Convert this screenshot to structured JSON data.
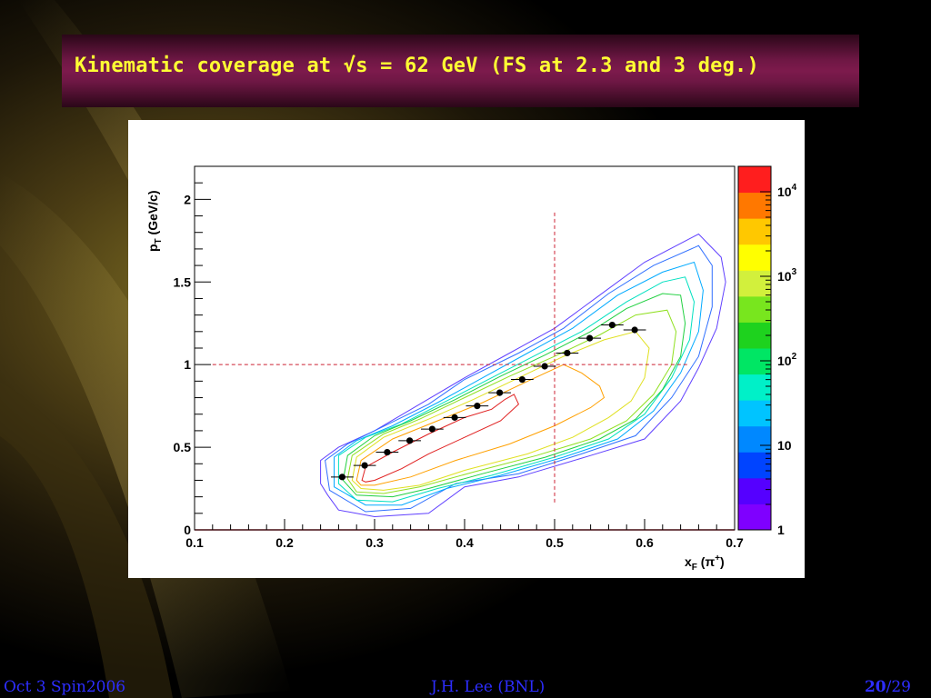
{
  "slide": {
    "title": "Kinematic coverage at √s = 62 GeV (FS at 2.3 and 3 deg.)",
    "footer_left": "Oct 3 Spin2006",
    "footer_center": "J.H. Lee (BNL)",
    "footer_page": "20",
    "footer_total": "/29",
    "title_color": "#ffff33",
    "footer_color": "#2d2dff"
  },
  "chart_data": {
    "type": "scatter",
    "xlabel": "x",
    "xlabel_sub": "F",
    "xlabel_paren": " (π",
    "xlabel_sup": "+",
    "xlabel_close": ")",
    "ylabel": "p",
    "ylabel_sub": "T",
    "ylabel_rest": " (GeV/c)",
    "xlim": [
      0.1,
      0.7
    ],
    "ylim": [
      0,
      2.2
    ],
    "x_ticks": [
      "0.1",
      "0.2",
      "0.3",
      "0.4",
      "0.5",
      "0.6",
      "0.7"
    ],
    "y_ticks": [
      "0",
      "0.5",
      "1",
      "1.5",
      "2"
    ],
    "x_tick_values": [
      0.1,
      0.2,
      0.3,
      0.4,
      0.5,
      0.6,
      0.7
    ],
    "y_tick_values": [
      0,
      0.5,
      1,
      1.5,
      2
    ],
    "colorbar": {
      "scale": "log",
      "range": [
        1,
        20000
      ],
      "labels": [
        "1",
        "10",
        "10",
        "10",
        "10"
      ],
      "label_sups": [
        "",
        "",
        "2",
        "3",
        "4"
      ],
      "label_values": [
        1,
        10,
        100,
        1000,
        10000
      ],
      "colors": [
        "#7f00ff",
        "#5500ff",
        "#0044ff",
        "#0088ff",
        "#00c4ff",
        "#00f0c8",
        "#00e664",
        "#1ed21e",
        "#78e61e",
        "#d2f03c",
        "#ffff00",
        "#ffc800",
        "#ff7800",
        "#ff1e1e"
      ]
    },
    "dashed_lines": {
      "x": 0.5,
      "y": 1.0,
      "color": "#cc2233"
    },
    "series": [
      {
        "x": [
          0.264,
          0.289,
          0.314,
          0.339,
          0.364,
          0.389,
          0.414,
          0.439,
          0.464,
          0.489,
          0.514,
          0.539,
          0.564,
          0.589
        ],
        "y": [
          0.32,
          0.39,
          0.47,
          0.54,
          0.61,
          0.68,
          0.75,
          0.83,
          0.91,
          0.99,
          1.07,
          1.16,
          1.24,
          1.21
        ],
        "xerr": 0.0125
      }
    ],
    "contours": [
      {
        "color": "#6040ff",
        "points": [
          [
            0.248,
            0.21
          ],
          [
            0.24,
            0.28
          ],
          [
            0.24,
            0.42
          ],
          [
            0.26,
            0.5
          ],
          [
            0.3,
            0.6
          ],
          [
            0.35,
            0.76
          ],
          [
            0.4,
            0.92
          ],
          [
            0.45,
            1.07
          ],
          [
            0.5,
            1.22
          ],
          [
            0.55,
            1.42
          ],
          [
            0.6,
            1.62
          ],
          [
            0.66,
            1.79
          ],
          [
            0.685,
            1.65
          ],
          [
            0.69,
            1.5
          ],
          [
            0.68,
            1.22
          ],
          [
            0.66,
            0.98
          ],
          [
            0.64,
            0.78
          ],
          [
            0.6,
            0.55
          ],
          [
            0.54,
            0.45
          ],
          [
            0.46,
            0.32
          ],
          [
            0.4,
            0.26
          ],
          [
            0.36,
            0.1
          ],
          [
            0.3,
            0.08
          ],
          [
            0.26,
            0.12
          ]
        ]
      },
      {
        "color": "#3070ff",
        "points": [
          [
            0.25,
            0.24
          ],
          [
            0.245,
            0.42
          ],
          [
            0.27,
            0.52
          ],
          [
            0.3,
            0.6
          ],
          [
            0.36,
            0.76
          ],
          [
            0.4,
            0.91
          ],
          [
            0.46,
            1.07
          ],
          [
            0.51,
            1.22
          ],
          [
            0.56,
            1.43
          ],
          [
            0.61,
            1.6
          ],
          [
            0.66,
            1.72
          ],
          [
            0.675,
            1.6
          ],
          [
            0.675,
            1.35
          ],
          [
            0.66,
            1.05
          ],
          [
            0.63,
            0.8
          ],
          [
            0.59,
            0.57
          ],
          [
            0.53,
            0.46
          ],
          [
            0.46,
            0.34
          ],
          [
            0.39,
            0.28
          ],
          [
            0.34,
            0.13
          ],
          [
            0.29,
            0.11
          ]
        ]
      },
      {
        "color": "#00aaff",
        "points": [
          [
            0.255,
            0.26
          ],
          [
            0.255,
            0.44
          ],
          [
            0.28,
            0.54
          ],
          [
            0.32,
            0.63
          ],
          [
            0.37,
            0.77
          ],
          [
            0.42,
            0.92
          ],
          [
            0.47,
            1.07
          ],
          [
            0.52,
            1.22
          ],
          [
            0.57,
            1.42
          ],
          [
            0.62,
            1.56
          ],
          [
            0.655,
            1.62
          ],
          [
            0.665,
            1.45
          ],
          [
            0.66,
            1.2
          ],
          [
            0.64,
            0.95
          ],
          [
            0.61,
            0.72
          ],
          [
            0.57,
            0.55
          ],
          [
            0.51,
            0.44
          ],
          [
            0.44,
            0.33
          ],
          [
            0.38,
            0.25
          ],
          [
            0.33,
            0.15
          ],
          [
            0.29,
            0.15
          ]
        ]
      },
      {
        "color": "#00e0c0",
        "points": [
          [
            0.26,
            0.28
          ],
          [
            0.26,
            0.45
          ],
          [
            0.29,
            0.56
          ],
          [
            0.33,
            0.64
          ],
          [
            0.38,
            0.78
          ],
          [
            0.43,
            0.92
          ],
          [
            0.48,
            1.06
          ],
          [
            0.53,
            1.2
          ],
          [
            0.58,
            1.38
          ],
          [
            0.62,
            1.5
          ],
          [
            0.645,
            1.53
          ],
          [
            0.655,
            1.38
          ],
          [
            0.65,
            1.15
          ],
          [
            0.63,
            0.92
          ],
          [
            0.6,
            0.7
          ],
          [
            0.56,
            0.55
          ],
          [
            0.5,
            0.44
          ],
          [
            0.43,
            0.33
          ],
          [
            0.37,
            0.25
          ],
          [
            0.32,
            0.17
          ],
          [
            0.28,
            0.18
          ]
        ]
      },
      {
        "color": "#20d040",
        "points": [
          [
            0.265,
            0.3
          ],
          [
            0.27,
            0.45
          ],
          [
            0.3,
            0.57
          ],
          [
            0.34,
            0.66
          ],
          [
            0.39,
            0.79
          ],
          [
            0.44,
            0.93
          ],
          [
            0.49,
            1.06
          ],
          [
            0.54,
            1.2
          ],
          [
            0.58,
            1.34
          ],
          [
            0.62,
            1.43
          ],
          [
            0.64,
            1.42
          ],
          [
            0.645,
            1.25
          ],
          [
            0.64,
            1.05
          ],
          [
            0.62,
            0.85
          ],
          [
            0.59,
            0.67
          ],
          [
            0.55,
            0.55
          ],
          [
            0.49,
            0.44
          ],
          [
            0.42,
            0.34
          ],
          [
            0.36,
            0.25
          ],
          [
            0.32,
            0.2
          ],
          [
            0.28,
            0.21
          ]
        ]
      },
      {
        "color": "#90e020",
        "points": [
          [
            0.27,
            0.31
          ],
          [
            0.275,
            0.45
          ],
          [
            0.31,
            0.58
          ],
          [
            0.35,
            0.67
          ],
          [
            0.4,
            0.8
          ],
          [
            0.45,
            0.93
          ],
          [
            0.5,
            1.05
          ],
          [
            0.55,
            1.18
          ],
          [
            0.59,
            1.3
          ],
          [
            0.625,
            1.33
          ],
          [
            0.635,
            1.2
          ],
          [
            0.63,
            1.0
          ],
          [
            0.61,
            0.82
          ],
          [
            0.58,
            0.66
          ],
          [
            0.54,
            0.55
          ],
          [
            0.48,
            0.45
          ],
          [
            0.41,
            0.35
          ],
          [
            0.35,
            0.26
          ],
          [
            0.31,
            0.22
          ],
          [
            0.28,
            0.23
          ]
        ]
      },
      {
        "color": "#e0e020",
        "points": [
          [
            0.275,
            0.3
          ],
          [
            0.28,
            0.44
          ],
          [
            0.31,
            0.56
          ],
          [
            0.36,
            0.67
          ],
          [
            0.41,
            0.79
          ],
          [
            0.46,
            0.92
          ],
          [
            0.51,
            1.05
          ],
          [
            0.555,
            1.15
          ],
          [
            0.59,
            1.2
          ],
          [
            0.605,
            1.1
          ],
          [
            0.6,
            0.92
          ],
          [
            0.585,
            0.78
          ],
          [
            0.56,
            0.68
          ],
          [
            0.52,
            0.56
          ],
          [
            0.47,
            0.46
          ],
          [
            0.4,
            0.36
          ],
          [
            0.35,
            0.27
          ],
          [
            0.31,
            0.24
          ],
          [
            0.285,
            0.25
          ]
        ]
      },
      {
        "color": "#ffa000",
        "points": [
          [
            0.28,
            0.3
          ],
          [
            0.285,
            0.42
          ],
          [
            0.32,
            0.55
          ],
          [
            0.37,
            0.66
          ],
          [
            0.42,
            0.77
          ],
          [
            0.47,
            0.9
          ],
          [
            0.51,
            1.0
          ],
          [
            0.53,
            0.95
          ],
          [
            0.55,
            0.87
          ],
          [
            0.555,
            0.8
          ],
          [
            0.54,
            0.74
          ],
          [
            0.5,
            0.63
          ],
          [
            0.45,
            0.52
          ],
          [
            0.39,
            0.42
          ],
          [
            0.34,
            0.32
          ],
          [
            0.3,
            0.27
          ],
          [
            0.285,
            0.27
          ]
        ]
      },
      {
        "color": "#e02020",
        "points": [
          [
            0.286,
            0.3
          ],
          [
            0.29,
            0.38
          ],
          [
            0.32,
            0.47
          ],
          [
            0.36,
            0.58
          ],
          [
            0.4,
            0.68
          ],
          [
            0.43,
            0.73
          ],
          [
            0.445,
            0.79
          ],
          [
            0.455,
            0.82
          ],
          [
            0.46,
            0.76
          ],
          [
            0.44,
            0.66
          ],
          [
            0.4,
            0.56
          ],
          [
            0.36,
            0.46
          ],
          [
            0.33,
            0.37
          ],
          [
            0.3,
            0.3
          ],
          [
            0.29,
            0.29
          ]
        ]
      }
    ]
  }
}
